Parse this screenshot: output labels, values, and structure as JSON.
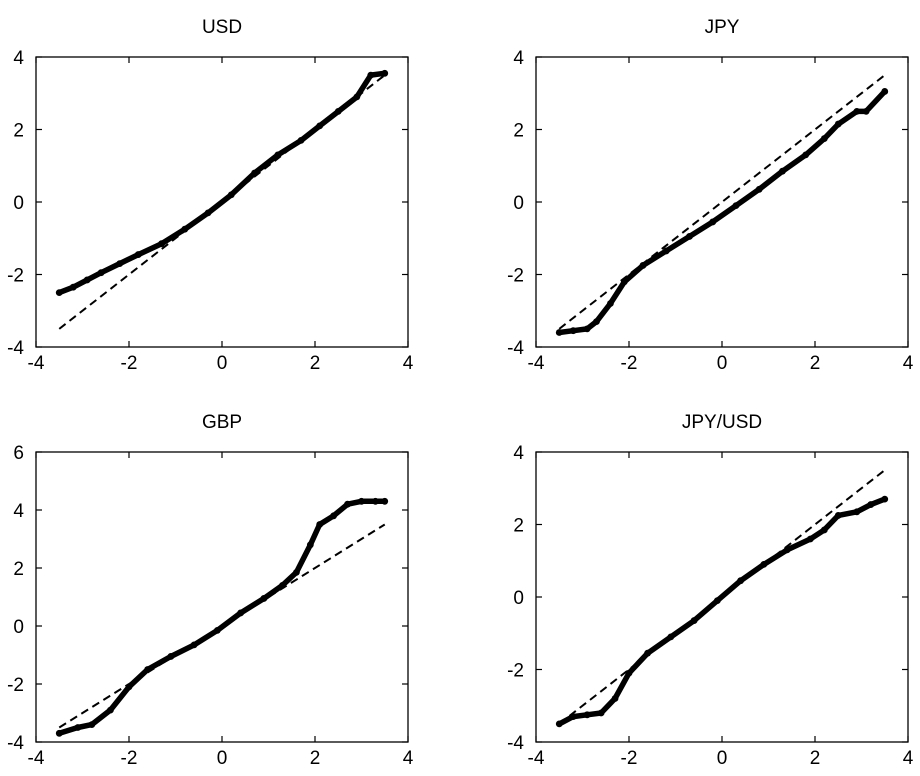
{
  "chart_data": [
    {
      "type": "scatter",
      "title": "USD",
      "xlim": [
        -4,
        4
      ],
      "ylim": [
        -4,
        4
      ],
      "xticks": [
        -4,
        -2,
        0,
        2,
        4
      ],
      "yticks": [
        -4,
        -2,
        0,
        2,
        4
      ],
      "reference_line": {
        "x": [
          -3.5,
          3.5
        ],
        "y": [
          -3.5,
          3.5
        ]
      },
      "series": [
        {
          "x": [
            -3.5,
            -3.2,
            -2.9,
            -2.6,
            -2.2,
            -1.8,
            -1.3,
            -0.8,
            -0.3,
            0.2,
            0.7,
            1.2,
            1.7,
            2.1,
            2.5,
            2.9,
            3.2,
            3.5
          ],
          "y": [
            -2.5,
            -2.35,
            -2.15,
            -1.95,
            -1.7,
            -1.45,
            -1.15,
            -0.75,
            -0.3,
            0.2,
            0.8,
            1.3,
            1.7,
            2.1,
            2.5,
            2.9,
            3.5,
            3.55
          ]
        }
      ]
    },
    {
      "type": "scatter",
      "title": "JPY",
      "xlim": [
        -4,
        4
      ],
      "ylim": [
        -4,
        4
      ],
      "xticks": [
        -4,
        -2,
        0,
        2,
        4
      ],
      "yticks": [
        -4,
        -2,
        0,
        2,
        4
      ],
      "reference_line": {
        "x": [
          -3.5,
          3.5
        ],
        "y": [
          -3.5,
          3.5
        ]
      },
      "series": [
        {
          "x": [
            -3.5,
            -3.2,
            -2.9,
            -2.7,
            -2.4,
            -2.1,
            -1.7,
            -1.2,
            -0.7,
            -0.2,
            0.3,
            0.8,
            1.3,
            1.8,
            2.2,
            2.5,
            2.9,
            3.1,
            3.5
          ],
          "y": [
            -3.6,
            -3.55,
            -3.5,
            -3.3,
            -2.8,
            -2.2,
            -1.75,
            -1.35,
            -0.95,
            -0.55,
            -0.1,
            0.35,
            0.85,
            1.3,
            1.75,
            2.15,
            2.5,
            2.5,
            3.05
          ]
        }
      ]
    },
    {
      "type": "scatter",
      "title": "GBP",
      "xlim": [
        -4,
        4
      ],
      "ylim": [
        -4,
        6
      ],
      "xticks": [
        -4,
        -2,
        0,
        2,
        4
      ],
      "yticks": [
        -4,
        -2,
        0,
        2,
        4,
        6
      ],
      "reference_line": {
        "x": [
          -3.5,
          3.5
        ],
        "y": [
          -3.5,
          3.5
        ]
      },
      "series": [
        {
          "x": [
            -3.5,
            -3.1,
            -2.8,
            -2.4,
            -2.0,
            -1.6,
            -1.1,
            -0.6,
            -0.1,
            0.4,
            0.9,
            1.3,
            1.6,
            1.9,
            2.1,
            2.4,
            2.7,
            3.0,
            3.3,
            3.5
          ],
          "y": [
            -3.7,
            -3.5,
            -3.4,
            -2.9,
            -2.1,
            -1.5,
            -1.05,
            -0.65,
            -0.15,
            0.45,
            0.95,
            1.4,
            1.85,
            2.8,
            3.5,
            3.8,
            4.2,
            4.3,
            4.3,
            4.3
          ]
        }
      ]
    },
    {
      "type": "scatter",
      "title": "JPY/USD",
      "xlim": [
        -4,
        4
      ],
      "ylim": [
        -4,
        4
      ],
      "xticks": [
        -4,
        -2,
        0,
        2,
        4
      ],
      "yticks": [
        -4,
        -2,
        0,
        2,
        4
      ],
      "reference_line": {
        "x": [
          -3.5,
          3.5
        ],
        "y": [
          -3.5,
          3.5
        ]
      },
      "series": [
        {
          "x": [
            -3.5,
            -3.2,
            -2.9,
            -2.6,
            -2.3,
            -2.0,
            -1.6,
            -1.1,
            -0.6,
            -0.1,
            0.4,
            0.9,
            1.4,
            1.9,
            2.2,
            2.5,
            2.9,
            3.2,
            3.5
          ],
          "y": [
            -3.5,
            -3.3,
            -3.25,
            -3.2,
            -2.8,
            -2.1,
            -1.55,
            -1.1,
            -0.65,
            -0.1,
            0.45,
            0.9,
            1.3,
            1.6,
            1.85,
            2.25,
            2.35,
            2.55,
            2.7
          ]
        }
      ]
    }
  ]
}
